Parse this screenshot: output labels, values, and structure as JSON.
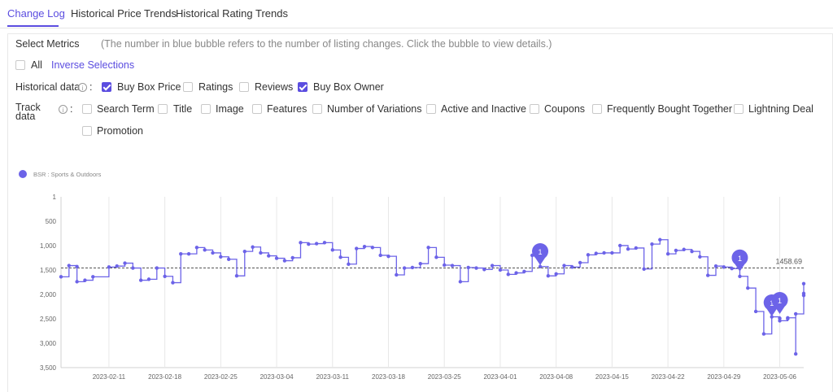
{
  "tabs": [
    "Change Log",
    "Historical Price Trends",
    "Historical Rating Trends"
  ],
  "metrics": {
    "title": "Select Metrics",
    "hint": "(The number in blue bubble refers to the number of listing changes. Click the bubble to view details.)",
    "all_label": "All",
    "inverse_label": "Inverse Selections"
  },
  "historical": {
    "label": "Historical data",
    "info_icon": "i",
    "colon": ":",
    "options": [
      {
        "label": "Buy Box Price",
        "checked": true
      },
      {
        "label": "Ratings",
        "checked": false
      },
      {
        "label": "Reviews",
        "checked": false
      },
      {
        "label": "Buy Box Owner",
        "checked": true
      }
    ]
  },
  "track": {
    "label_line1": "Track",
    "label_line2": "data",
    "info_icon": "i",
    "colon": ":",
    "options": [
      "Search Term",
      "Title",
      "Image",
      "Features",
      "Number of Variations",
      "Active and Inactive",
      "Coupons",
      "Frequently Bought Together",
      "Lightning Deal",
      "Promotion"
    ]
  },
  "colors": {
    "accent": "#5b4de0",
    "line": "#6c63e8",
    "grid": "#e8e8e8",
    "refline": "#555555"
  },
  "chart_data": {
    "type": "line",
    "step": true,
    "legend": "BSR : Sports & Outdoors",
    "legend_position": "top-left",
    "y_reversed": true,
    "ylim": [
      1,
      3500
    ],
    "y_ticks": [
      1,
      500,
      1000,
      1500,
      2000,
      2500,
      3000,
      3500
    ],
    "y_tick_labels": [
      "1",
      "500",
      "1,000",
      "1,500",
      "2,000",
      "2,500",
      "3,000",
      "3,500"
    ],
    "x_range": [
      "2023-02-05",
      "2023-05-09"
    ],
    "x_ticks": [
      "2023-02-11",
      "2023-02-18",
      "2023-02-25",
      "2023-03-04",
      "2023-03-11",
      "2023-03-18",
      "2023-03-25",
      "2023-04-01",
      "2023-04-08",
      "2023-04-15",
      "2023-04-22",
      "2023-04-29",
      "2023-05-06"
    ],
    "grid_vertical": true,
    "reference_line": {
      "value": 1458.69,
      "label": "1458.69"
    },
    "series": [
      {
        "points": [
          [
            "2023-02-05",
            1640
          ],
          [
            "2023-02-06",
            1410
          ],
          [
            "2023-02-07",
            1430
          ],
          [
            "2023-02-07",
            1740
          ],
          [
            "2023-02-08",
            1710
          ],
          [
            "2023-02-09",
            1640
          ],
          [
            "2023-02-11",
            1440
          ],
          [
            "2023-02-12",
            1420
          ],
          [
            "2023-02-13",
            1360
          ],
          [
            "2023-02-14",
            1460
          ],
          [
            "2023-02-15",
            1710
          ],
          [
            "2023-02-16",
            1690
          ],
          [
            "2023-02-17",
            1460
          ],
          [
            "2023-02-18",
            1630
          ],
          [
            "2023-02-19",
            1760
          ],
          [
            "2023-02-20",
            1170
          ],
          [
            "2023-02-21",
            1170
          ],
          [
            "2023-02-22",
            1040
          ],
          [
            "2023-02-23",
            1090
          ],
          [
            "2023-02-24",
            1150
          ],
          [
            "2023-02-25",
            1230
          ],
          [
            "2023-02-26",
            1280
          ],
          [
            "2023-02-27",
            1620
          ],
          [
            "2023-02-28",
            1120
          ],
          [
            "2023-03-01",
            1030
          ],
          [
            "2023-03-02",
            1150
          ],
          [
            "2023-03-03",
            1210
          ],
          [
            "2023-03-04",
            1260
          ],
          [
            "2023-03-05",
            1310
          ],
          [
            "2023-03-06",
            1250
          ],
          [
            "2023-03-07",
            940
          ],
          [
            "2023-03-08",
            970
          ],
          [
            "2023-03-09",
            960
          ],
          [
            "2023-03-10",
            940
          ],
          [
            "2023-03-11",
            1090
          ],
          [
            "2023-03-12",
            1240
          ],
          [
            "2023-03-13",
            1380
          ],
          [
            "2023-03-14",
            1060
          ],
          [
            "2023-03-15",
            1020
          ],
          [
            "2023-03-16",
            1040
          ],
          [
            "2023-03-17",
            1200
          ],
          [
            "2023-03-18",
            1220
          ],
          [
            "2023-03-19",
            1600
          ],
          [
            "2023-03-20",
            1460
          ],
          [
            "2023-03-21",
            1450
          ],
          [
            "2023-03-22",
            1370
          ],
          [
            "2023-03-23",
            1040
          ],
          [
            "2023-03-24",
            1240
          ],
          [
            "2023-03-25",
            1400
          ],
          [
            "2023-03-26",
            1410
          ],
          [
            "2023-03-27",
            1740
          ],
          [
            "2023-03-28",
            1450
          ],
          [
            "2023-03-29",
            1460
          ],
          [
            "2023-03-30",
            1490
          ],
          [
            "2023-03-31",
            1410
          ],
          [
            "2023-04-01",
            1500
          ],
          [
            "2023-04-02",
            1590
          ],
          [
            "2023-04-03",
            1560
          ],
          [
            "2023-04-04",
            1530
          ],
          [
            "2023-04-05",
            1200
          ],
          [
            "2023-04-06",
            1430
          ],
          [
            "2023-04-07",
            1620
          ],
          [
            "2023-04-08",
            1580
          ],
          [
            "2023-04-09",
            1410
          ],
          [
            "2023-04-10",
            1440
          ],
          [
            "2023-04-11",
            1350
          ],
          [
            "2023-04-12",
            1190
          ],
          [
            "2023-04-13",
            1160
          ],
          [
            "2023-04-14",
            1150
          ],
          [
            "2023-04-15",
            1150
          ],
          [
            "2023-04-16",
            1000
          ],
          [
            "2023-04-17",
            1070
          ],
          [
            "2023-04-18",
            1050
          ],
          [
            "2023-04-19",
            1480
          ],
          [
            "2023-04-20",
            970
          ],
          [
            "2023-04-21",
            880
          ],
          [
            "2023-04-22",
            1170
          ],
          [
            "2023-04-23",
            1100
          ],
          [
            "2023-04-24",
            1080
          ],
          [
            "2023-04-25",
            1120
          ],
          [
            "2023-04-26",
            1230
          ],
          [
            "2023-04-27",
            1610
          ],
          [
            "2023-04-28",
            1420
          ],
          [
            "2023-04-29",
            1440
          ],
          [
            "2023-04-30",
            1470
          ],
          [
            "2023-05-01",
            1630
          ],
          [
            "2023-05-02",
            1870
          ],
          [
            "2023-05-03",
            2350
          ],
          [
            "2023-05-04",
            2810
          ],
          [
            "2023-05-05",
            2460
          ],
          [
            "2023-05-06",
            2490
          ],
          [
            "2023-05-06",
            2540
          ],
          [
            "2023-05-07",
            2500
          ],
          [
            "2023-05-07",
            2480
          ],
          [
            "2023-05-08",
            3220
          ],
          [
            "2023-05-08",
            2400
          ],
          [
            "2023-05-09",
            2020
          ],
          [
            "2023-05-09",
            1980
          ],
          [
            "2023-05-09",
            1780
          ]
        ]
      }
    ],
    "bubbles": [
      {
        "x": "2023-04-06",
        "value": 1400,
        "label": "1"
      },
      {
        "x": "2023-05-01",
        "value": 1530,
        "label": "1"
      },
      {
        "x": "2023-05-05",
        "value": 2450,
        "label": "1"
      },
      {
        "x": "2023-05-06",
        "value": 2400,
        "label": "1"
      }
    ]
  }
}
